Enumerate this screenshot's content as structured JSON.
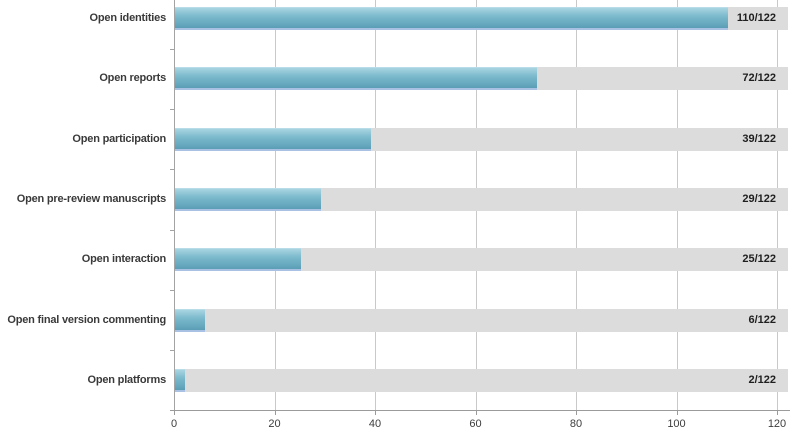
{
  "chart_data": {
    "type": "bar",
    "orientation": "horizontal",
    "title": "",
    "xlabel": "",
    "ylabel": "",
    "categories": [
      "Open identities",
      "Open reports",
      "Open participation",
      "Open pre-review manuscripts",
      "Open interaction",
      "Open final version commenting",
      "Open platforms"
    ],
    "values": [
      110,
      72,
      39,
      29,
      25,
      6,
      2
    ],
    "total": 122,
    "value_labels": [
      "110/122",
      "72/122",
      "39/122",
      "29/122",
      "25/122",
      "6/122",
      "2/122"
    ],
    "x_ticks": [
      0,
      20,
      40,
      60,
      80,
      100,
      120
    ],
    "xlim": [
      0,
      122
    ],
    "grid": "vertical-gridlines-on",
    "legend": "none",
    "colors": {
      "bar_top": "#a9d4e1",
      "bar_mid": "#7cbacd",
      "bar_bottom": "#5b9db4",
      "bar_bottom_edge": "#a9c2e4",
      "track": "#dcdcdc",
      "gridline": "#c9c9c9",
      "axis": "#9b9b9b",
      "category_label": "#3a3a3a",
      "value_label": "#1f1f1f",
      "tick_label": "#3d3d3d",
      "background": "#ffffff"
    }
  }
}
